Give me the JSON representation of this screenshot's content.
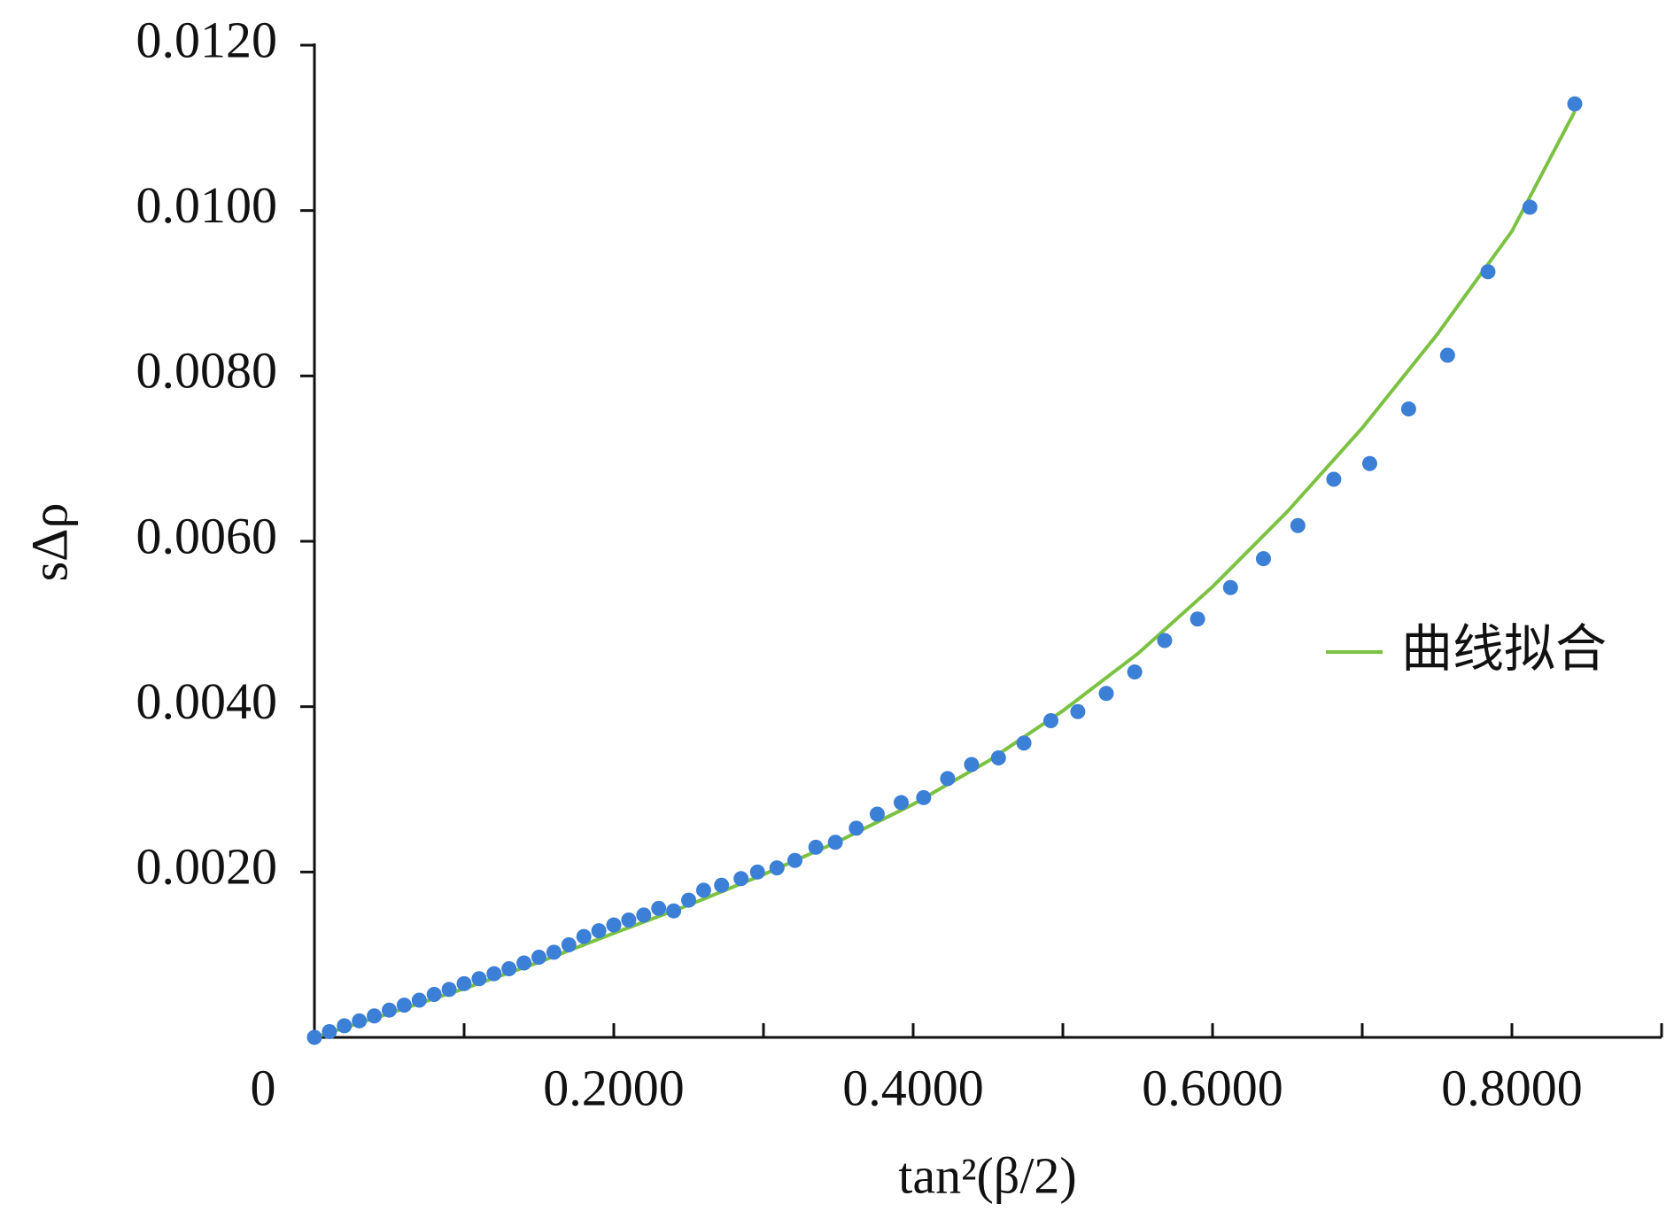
{
  "chart_data": {
    "type": "scatter",
    "x_label": "tan²(β/2)",
    "y_label": "sΔρ",
    "xlim": [
      0,
      0.9
    ],
    "ylim": [
      0,
      0.012
    ],
    "xticks": [
      0,
      {
        "value": 0.2,
        "label": "0.2000"
      },
      {
        "value": 0.4,
        "label": "0.4000"
      },
      {
        "value": 0.6,
        "label": "0.6000"
      },
      {
        "value": 0.8,
        "label": "0.8000"
      }
    ],
    "xminorticks": [
      0.1,
      0.3,
      0.5,
      0.7,
      0.9
    ],
    "yticks": [
      {
        "value": 0.002,
        "label": "0.0020"
      },
      {
        "value": 0.004,
        "label": "0.0040"
      },
      {
        "value": 0.006,
        "label": "0.0060"
      },
      {
        "value": 0.008,
        "label": "0.0080"
      },
      {
        "value": 0.01,
        "label": "0.0100"
      },
      {
        "value": 0.012,
        "label": "0.0120"
      }
    ],
    "legend": "right",
    "points": {
      "color": "#3b7fd6",
      "x": [
        0,
        0.01,
        0.02,
        0.03,
        0.04,
        0.05,
        0.06,
        0.07,
        0.08,
        0.09,
        0.1,
        0.11,
        0.12,
        0.13,
        0.14,
        0.15,
        0.16,
        0.17,
        0.18,
        0.19,
        0.2,
        0.21,
        0.22,
        0.23,
        0.24,
        0.25,
        0.26,
        0.272,
        0.285,
        0.296,
        0.309,
        0.321,
        0.335,
        0.348,
        0.362,
        0.376,
        0.392,
        0.407,
        0.423,
        0.439,
        0.457,
        0.474,
        0.492,
        0.51,
        0.529,
        0.548,
        0.568,
        0.59,
        0.612,
        0.634,
        0.657,
        0.681,
        0.705,
        0.731,
        0.757,
        0.784,
        0.812,
        0.842
      ],
      "values": [
        0,
        7e-05,
        0.00014,
        0.0002,
        0.00026,
        0.00033,
        0.00039,
        0.00045,
        0.00052,
        0.00058,
        0.00065,
        0.00071,
        0.00077,
        0.00083,
        0.0009,
        0.00097,
        0.00103,
        0.00112,
        0.00122,
        0.00129,
        0.00136,
        0.00142,
        0.00148,
        0.00156,
        0.00153,
        0.00166,
        0.00178,
        0.00184,
        0.00192,
        0.002,
        0.00205,
        0.00214,
        0.0023,
        0.00236,
        0.00253,
        0.0027,
        0.00284,
        0.0029,
        0.00313,
        0.0033,
        0.00338,
        0.00356,
        0.00383,
        0.00394,
        0.00416,
        0.00442,
        0.0048,
        0.00506,
        0.00544,
        0.00579,
        0.00619,
        0.00675,
        0.00694,
        0.0076,
        0.00825,
        0.00926,
        0.01004,
        0.01129
      ]
    },
    "series": [
      {
        "name": "曲线拟合",
        "color": "#7cc242",
        "x": [
          0,
          0.05,
          0.1,
          0.15,
          0.2,
          0.25,
          0.3,
          0.35,
          0.4,
          0.45,
          0.5,
          0.55,
          0.6,
          0.65,
          0.7,
          0.75,
          0.8,
          0.842
        ],
        "values": [
          0,
          0.00029,
          0.00059,
          0.00091,
          0.00126,
          0.0016,
          0.00197,
          0.00237,
          0.00282,
          0.00334,
          0.00395,
          0.00464,
          0.00545,
          0.00636,
          0.00737,
          0.0085,
          0.00975,
          0.0112
        ]
      }
    ]
  }
}
